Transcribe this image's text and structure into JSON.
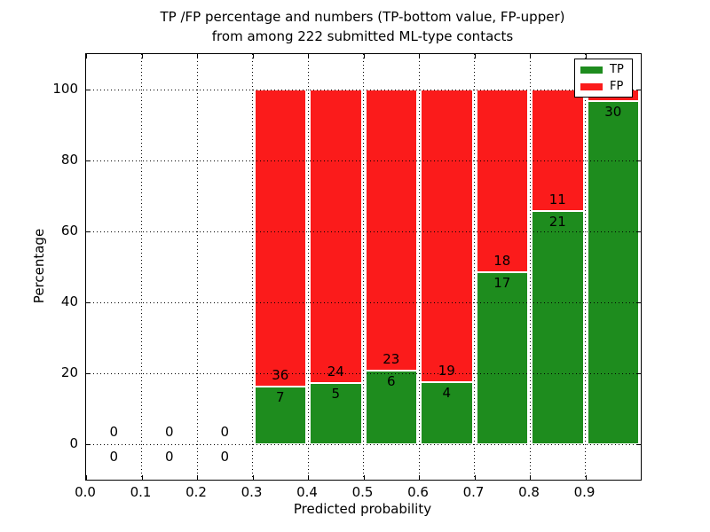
{
  "title": {
    "line1": "TP /FP percentage and numbers (TP-bottom value, FP-upper)",
    "line2": "from among 222 submitted ML-type contacts"
  },
  "chart_data": {
    "type": "bar",
    "stacked": true,
    "title": "TP /FP percentage and numbers (TP-bottom value, FP-upper) from among 222 submitted ML-type contacts",
    "xlabel": "Predicted probability",
    "ylabel": "Percentage",
    "xlim": [
      0.0,
      1.0
    ],
    "ylim": [
      -10,
      110
    ],
    "xtick_labels": [
      "0.0",
      "0.1",
      "0.2",
      "0.3",
      "0.4",
      "0.5",
      "0.6",
      "0.7",
      "0.8",
      "0.9"
    ],
    "xtick_values": [
      0.0,
      0.1,
      0.2,
      0.3,
      0.4,
      0.5,
      0.6,
      0.7,
      0.8,
      0.9
    ],
    "ytick_labels": [
      "0",
      "20",
      "40",
      "60",
      "80",
      "100"
    ],
    "ytick_values": [
      0,
      20,
      40,
      60,
      80,
      100
    ],
    "grid": true,
    "legend_position": "upper right",
    "legend": [
      {
        "label": "TP",
        "color": "#1e8c1e"
      },
      {
        "label": "FP",
        "color": "#fb1b1b"
      }
    ],
    "colors": {
      "tp": "#1e8c1e",
      "fp": "#fb1b1b"
    },
    "bin_width": 0.1,
    "series": [
      {
        "name": "TP",
        "role": "bottom"
      },
      {
        "name": "FP",
        "role": "top"
      }
    ],
    "bins": [
      {
        "x0": 0.0,
        "x1": 0.1,
        "tp_label": "0",
        "fp_label": "0",
        "tp_pct": 0,
        "fp_pct": 0
      },
      {
        "x0": 0.1,
        "x1": 0.2,
        "tp_label": "0",
        "fp_label": "0",
        "tp_pct": 0,
        "fp_pct": 0
      },
      {
        "x0": 0.2,
        "x1": 0.3,
        "tp_label": "0",
        "fp_label": "0",
        "tp_pct": 0,
        "fp_pct": 0
      },
      {
        "x0": 0.3,
        "x1": 0.4,
        "tp_label": "7",
        "fp_label": "36",
        "tp_pct": 16.28,
        "fp_pct": 83.72
      },
      {
        "x0": 0.4,
        "x1": 0.5,
        "tp_label": "5",
        "fp_label": "24",
        "tp_pct": 17.24,
        "fp_pct": 82.76
      },
      {
        "x0": 0.5,
        "x1": 0.6,
        "tp_label": "6",
        "fp_label": "23",
        "tp_pct": 20.69,
        "fp_pct": 79.31
      },
      {
        "x0": 0.6,
        "x1": 0.7,
        "tp_label": "4",
        "fp_label": "19",
        "tp_pct": 17.39,
        "fp_pct": 82.61
      },
      {
        "x0": 0.7,
        "x1": 0.8,
        "tp_label": "17",
        "fp_label": "18",
        "tp_pct": 48.57,
        "fp_pct": 51.43
      },
      {
        "x0": 0.8,
        "x1": 0.9,
        "tp_label": "21",
        "fp_label": "11",
        "tp_pct": 65.63,
        "fp_pct": 34.37
      },
      {
        "x0": 0.9,
        "x1": 1.0,
        "tp_label": "30",
        "fp_label": "",
        "tp_pct": 96.77,
        "fp_pct": 3.23
      }
    ]
  }
}
